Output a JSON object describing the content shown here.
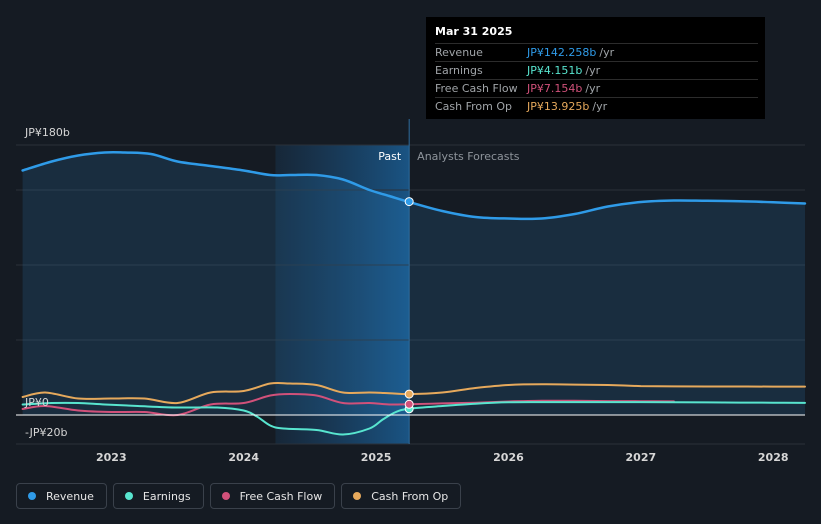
{
  "chart_data": {
    "type": "line",
    "title": "",
    "xlabel": "",
    "ylabel": "",
    "x_ticks": [
      "2023",
      "2024",
      "2025",
      "2026",
      "2027",
      "2028"
    ],
    "xlim": [
      2022.28,
      2028.24
    ],
    "ylim": [
      -20,
      180
    ],
    "y_tick_labels": [
      "JP¥180b",
      "JP¥0",
      "-JP¥20b"
    ],
    "past_label": "Past",
    "forecast_label": "Analysts Forecasts",
    "past_end_x": 2025.25,
    "highlight_start_x": 2024.24,
    "series": [
      {
        "name": "Revenue",
        "color": "#2f9be8",
        "area": true,
        "x": [
          2022.33,
          2022.55,
          2022.75,
          2022.95,
          2023.1,
          2023.3,
          2023.5,
          2023.75,
          2024.0,
          2024.2,
          2024.35,
          2024.55,
          2024.75,
          2024.95,
          2025.1,
          2025.25,
          2025.5,
          2025.75,
          2026.0,
          2026.25,
          2026.5,
          2026.75,
          2027.0,
          2027.25,
          2027.5,
          2027.75,
          2028.0,
          2028.24
        ],
        "y": [
          163,
          169,
          173,
          175,
          175,
          174,
          169,
          166,
          163,
          160,
          160,
          160,
          157,
          150,
          146,
          142,
          136,
          132,
          131,
          131,
          134,
          139,
          142,
          143,
          142.8,
          142.5,
          141.8,
          141
        ]
      },
      {
        "name": "Earnings",
        "color": "#58e5cf",
        "area": false,
        "x": [
          2022.33,
          2022.55,
          2022.75,
          2022.95,
          2023.2,
          2023.5,
          2023.8,
          2024.0,
          2024.1,
          2024.2,
          2024.3,
          2024.55,
          2024.75,
          2024.95,
          2025.05,
          2025.15,
          2025.25,
          2025.5,
          2025.75,
          2026.0,
          2026.25,
          2026.5,
          2026.75,
          2027.0,
          2027.25,
          2027.5,
          2027.75,
          2028.0,
          2028.24
        ],
        "y": [
          7,
          8,
          8,
          7,
          6,
          5,
          5,
          3,
          -1,
          -7,
          -9,
          -10,
          -13,
          -9,
          -3,
          2,
          4.2,
          6,
          7.5,
          8.5,
          8.6,
          8.6,
          8.6,
          8.6,
          8.5,
          8.4,
          8.3,
          8.2,
          8.1
        ]
      },
      {
        "name": "Free Cash Flow",
        "color": "#d1517a",
        "area": false,
        "x": [
          2022.33,
          2022.5,
          2022.75,
          2023.0,
          2023.25,
          2023.5,
          2023.75,
          2024.0,
          2024.2,
          2024.35,
          2024.55,
          2024.75,
          2024.95,
          2025.1,
          2025.25,
          2025.5,
          2025.75,
          2026.0,
          2026.25,
          2026.5,
          2026.75,
          2027.0,
          2027.25
        ],
        "y": [
          4,
          6,
          3,
          2,
          2,
          0,
          7,
          8,
          13,
          14,
          13,
          8,
          8,
          7,
          7.2,
          7.7,
          8.2,
          9,
          9.5,
          9.5,
          9.3,
          9.2,
          9.1
        ]
      },
      {
        "name": "Cash From Op",
        "color": "#e6a95c",
        "area": false,
        "x": [
          2022.33,
          2022.5,
          2022.75,
          2023.0,
          2023.25,
          2023.5,
          2023.75,
          2024.0,
          2024.2,
          2024.35,
          2024.55,
          2024.75,
          2024.95,
          2025.1,
          2025.25,
          2025.5,
          2025.75,
          2026.0,
          2026.25,
          2026.5,
          2026.75,
          2027.0,
          2027.25,
          2027.5,
          2027.75,
          2028.0,
          2028.24
        ],
        "y": [
          12,
          15,
          11,
          11,
          11,
          8,
          15,
          16,
          21,
          21,
          20,
          15,
          15,
          14.5,
          13.9,
          15,
          18,
          20,
          20.5,
          20.3,
          20,
          19.3,
          19.1,
          19,
          19,
          18.9,
          18.9
        ]
      }
    ]
  },
  "tooltip": {
    "date": "Mar 31 2025",
    "x": 2025.25,
    "rows": [
      {
        "label": "Revenue",
        "value": "JP¥142.258b",
        "unit": "/yr",
        "color": "#2f9be8"
      },
      {
        "label": "Earnings",
        "value": "JP¥4.151b",
        "unit": "/yr",
        "color": "#58e5cf"
      },
      {
        "label": "Free Cash Flow",
        "value": "JP¥7.154b",
        "unit": "/yr",
        "color": "#d1517a"
      },
      {
        "label": "Cash From Op",
        "value": "JP¥13.925b",
        "unit": "/yr",
        "color": "#e6a95c"
      }
    ]
  },
  "legend": [
    {
      "label": "Revenue",
      "color": "#2f9be8"
    },
    {
      "label": "Earnings",
      "color": "#58e5cf"
    },
    {
      "label": "Free Cash Flow",
      "color": "#d1517a"
    },
    {
      "label": "Cash From Op",
      "color": "#e6a95c"
    }
  ]
}
